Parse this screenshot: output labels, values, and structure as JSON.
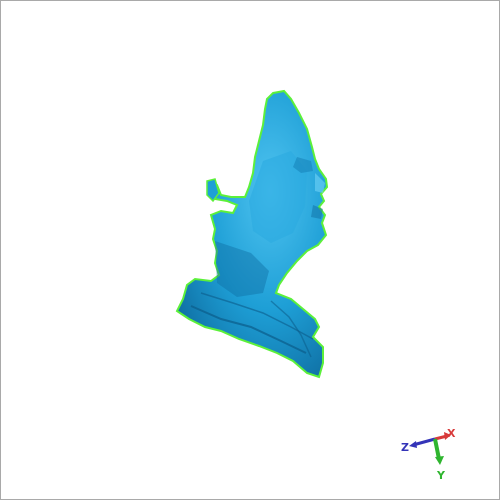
{
  "viewer": {
    "background": "#ffffff",
    "border_color": "#a9a9a9"
  },
  "model": {
    "icon": "scanned-head-mesh",
    "surface_color": "#1e9fd6",
    "edge_color": "#5cf03a"
  },
  "axes": {
    "x_label": "X",
    "y_label": "Y",
    "z_label": "Z",
    "x_color": "#d83a3a",
    "y_color": "#2fb52f",
    "z_color": "#3434b8"
  }
}
